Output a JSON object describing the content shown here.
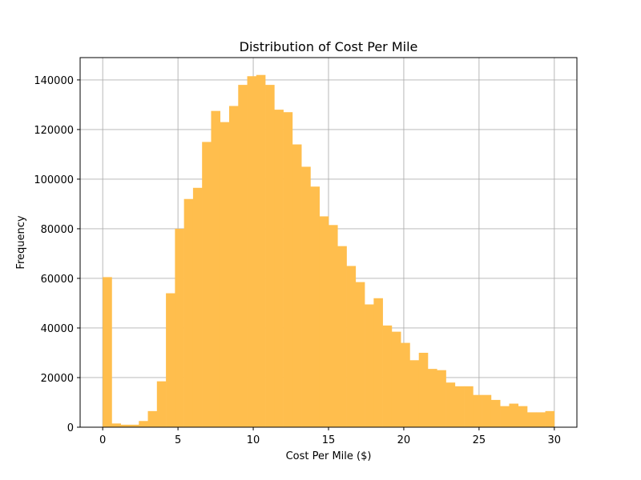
{
  "chart_data": {
    "type": "bar",
    "title": "Distribution of Cost Per Mile",
    "xlabel": "Cost Per Mile ($)",
    "ylabel": "Frequency",
    "xlim": [
      -1.5,
      31.5
    ],
    "ylim": [
      0,
      149000
    ],
    "xticks": [
      0,
      5,
      10,
      15,
      20,
      25,
      30
    ],
    "yticks": [
      0,
      20000,
      40000,
      60000,
      80000,
      100000,
      120000,
      140000
    ],
    "grid": true,
    "bar_color": "#ffbe4d",
    "bin_start": 0,
    "bin_width": 0.6,
    "values": [
      60500,
      1500,
      1000,
      1000,
      2500,
      6500,
      18500,
      54000,
      80000,
      92000,
      96500,
      115000,
      127500,
      123000,
      129500,
      138000,
      141500,
      142000,
      138000,
      128000,
      127000,
      114000,
      105000,
      97000,
      85000,
      81500,
      73000,
      65000,
      58500,
      49500,
      52000,
      41000,
      38500,
      34000,
      27000,
      30000,
      23500,
      23000,
      18000,
      16500,
      16500,
      13000,
      13000,
      11000,
      8500,
      9500,
      8500,
      6000,
      6000,
      6500
    ]
  }
}
